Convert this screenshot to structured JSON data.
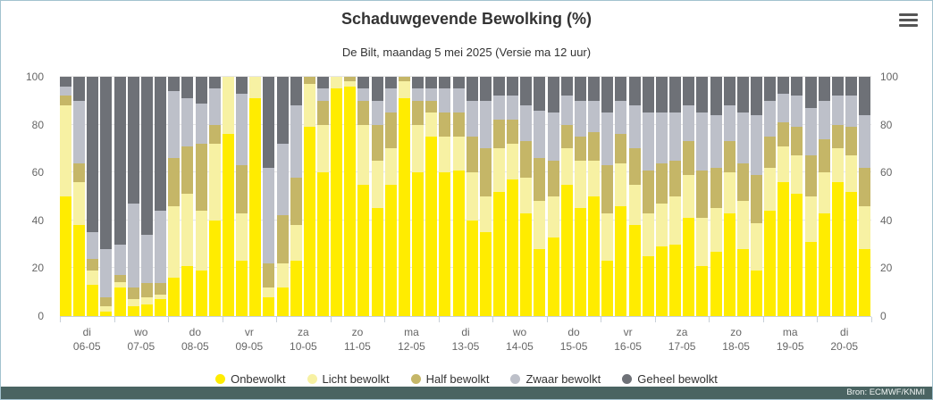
{
  "header": {
    "title": "Schaduwgevende Bewolking (%)",
    "subtitle": "De Bilt, maandag 5 mei 2025 (Versie ma 12 uur)"
  },
  "footer": {
    "source": "Bron: ECMWF/KNMI"
  },
  "colors": {
    "border": "#a3c2cf",
    "grid": "#e6e6e6",
    "axis": "#c8d0d8",
    "labels": "#666666",
    "title": "#333333",
    "footer_bg": "#4a6462"
  },
  "chart_data": {
    "type": "bar",
    "stacked": true,
    "title": "Schaduwgevende Bewolking (%)",
    "subtitle": "De Bilt, maandag 5 mei 2025 (Versie ma 12 uur)",
    "ylim": [
      0,
      100
    ],
    "yticks": [
      0,
      20,
      40,
      60,
      80,
      100
    ],
    "grid": true,
    "legend_position": "bottom",
    "bars_per_day": 4,
    "categories": [
      {
        "day": "di",
        "date": "06-05"
      },
      {
        "day": "wo",
        "date": "07-05"
      },
      {
        "day": "do",
        "date": "08-05"
      },
      {
        "day": "vr",
        "date": "09-05"
      },
      {
        "day": "za",
        "date": "10-05"
      },
      {
        "day": "zo",
        "date": "11-05"
      },
      {
        "day": "ma",
        "date": "12-05"
      },
      {
        "day": "di",
        "date": "13-05"
      },
      {
        "day": "wo",
        "date": "14-05"
      },
      {
        "day": "do",
        "date": "15-05"
      },
      {
        "day": "vr",
        "date": "16-05"
      },
      {
        "day": "za",
        "date": "17-05"
      },
      {
        "day": "zo",
        "date": "18-05"
      },
      {
        "day": "ma",
        "date": "19-05"
      },
      {
        "day": "di",
        "date": "20-05"
      }
    ],
    "series": [
      {
        "name": "Onbewolkt",
        "color": "#ffec00",
        "values": [
          50,
          38,
          13,
          2,
          12,
          4,
          5,
          7,
          16,
          21,
          19,
          40,
          76,
          23,
          91,
          8,
          12,
          23,
          79,
          60,
          95,
          96,
          55,
          45,
          55,
          91,
          60,
          75,
          60,
          61,
          40,
          35,
          52,
          57,
          43,
          28,
          33,
          55,
          45,
          50,
          23,
          46,
          38,
          25,
          29,
          30,
          41,
          21,
          27,
          43,
          28,
          19,
          44,
          56,
          51,
          31,
          43,
          56,
          52,
          28
        ]
      },
      {
        "name": "Licht bewolkt",
        "color": "#f7f1a3",
        "values": [
          38,
          18,
          6,
          2,
          2,
          3,
          3,
          2,
          30,
          30,
          25,
          32,
          24,
          20,
          9,
          4,
          10,
          15,
          18,
          20,
          5,
          2,
          25,
          20,
          15,
          7,
          20,
          10,
          15,
          14,
          20,
          15,
          18,
          15,
          15,
          20,
          17,
          15,
          20,
          15,
          20,
          18,
          17,
          18,
          18,
          20,
          18,
          20,
          18,
          17,
          20,
          20,
          18,
          15,
          16,
          19,
          17,
          14,
          15,
          18
        ]
      },
      {
        "name": "Half bewolkt",
        "color": "#c5b667",
        "values": [
          4,
          8,
          5,
          4,
          3,
          5,
          6,
          5,
          20,
          20,
          28,
          8,
          0,
          20,
          0,
          10,
          20,
          20,
          3,
          10,
          0,
          2,
          10,
          15,
          15,
          2,
          10,
          5,
          10,
          10,
          15,
          20,
          12,
          10,
          15,
          18,
          15,
          10,
          10,
          12,
          20,
          12,
          15,
          18,
          17,
          15,
          14,
          20,
          17,
          13,
          16,
          20,
          13,
          10,
          12,
          17,
          14,
          10,
          12,
          16
        ]
      },
      {
        "name": "Zwaar bewolkt",
        "color": "#bdc0c9",
        "values": [
          4,
          26,
          11,
          20,
          13,
          35,
          20,
          30,
          28,
          20,
          17,
          15,
          0,
          30,
          0,
          40,
          30,
          30,
          0,
          5,
          0,
          0,
          5,
          10,
          10,
          0,
          5,
          5,
          10,
          10,
          15,
          20,
          10,
          10,
          15,
          20,
          20,
          12,
          15,
          13,
          22,
          14,
          18,
          24,
          21,
          20,
          15,
          24,
          22,
          15,
          21,
          25,
          15,
          12,
          13,
          20,
          16,
          12,
          13,
          22
        ]
      },
      {
        "name": "Geheel bewolkt",
        "color": "#6e7177",
        "values": [
          4,
          10,
          65,
          72,
          70,
          53,
          66,
          56,
          6,
          9,
          11,
          5,
          0,
          7,
          0,
          38,
          28,
          12,
          0,
          5,
          0,
          0,
          5,
          10,
          5,
          0,
          5,
          5,
          5,
          5,
          10,
          10,
          8,
          8,
          12,
          14,
          15,
          8,
          10,
          10,
          15,
          10,
          12,
          15,
          15,
          15,
          12,
          15,
          16,
          12,
          15,
          16,
          10,
          7,
          8,
          13,
          10,
          8,
          8,
          16
        ]
      }
    ]
  }
}
